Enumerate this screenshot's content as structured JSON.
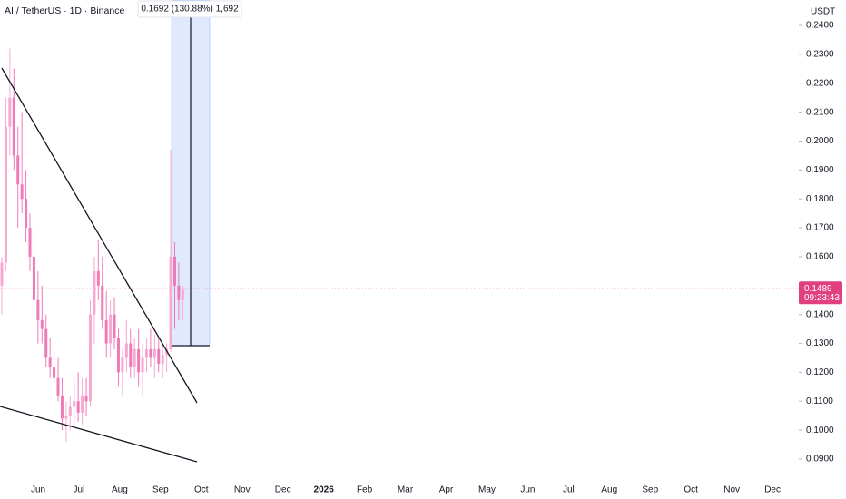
{
  "chart_data": {
    "type": "candlestick",
    "title": "AI / TetherUS · 1D · Binance",
    "y_unit": "USDT",
    "measure_label": "0.1692 (130.88%) 1,692",
    "last_price": 0.1489,
    "countdown": "09:23:43",
    "up_color": "#f8a8d0",
    "down_color": "#f07ab8",
    "price_line_color": "#e0407f",
    "categories": [
      "Jun",
      "Jul",
      "Aug",
      "Sep",
      "Oct",
      "Nov",
      "Dec",
      "2026",
      "Feb",
      "Mar",
      "Apr",
      "May",
      "Jun",
      "Jul",
      "Aug",
      "Sep",
      "Oct",
      "Nov",
      "Dec"
    ],
    "open": [
      0.15,
      0.158,
      0.205,
      0.215,
      0.195,
      0.185,
      0.18,
      0.17,
      0.16,
      0.145,
      0.138,
      0.135,
      0.125,
      0.122,
      0.118,
      0.112,
      0.104,
      0.105,
      0.108,
      0.11,
      0.106,
      0.112,
      0.11,
      0.14,
      0.155,
      0.15,
      0.138,
      0.13,
      0.14,
      0.132,
      0.12,
      0.125,
      0.13,
      0.122,
      0.128,
      0.12,
      0.125,
      0.128,
      0.125,
      0.128,
      0.123,
      0.126,
      0.128,
      0.16,
      0.15,
      0.145
    ],
    "high": [
      0.16,
      0.215,
      0.232,
      0.225,
      0.205,
      0.21,
      0.19,
      0.175,
      0.17,
      0.155,
      0.15,
      0.14,
      0.132,
      0.128,
      0.125,
      0.118,
      0.11,
      0.112,
      0.118,
      0.12,
      0.118,
      0.118,
      0.145,
      0.16,
      0.166,
      0.16,
      0.148,
      0.145,
      0.146,
      0.135,
      0.128,
      0.138,
      0.135,
      0.132,
      0.135,
      0.13,
      0.132,
      0.135,
      0.133,
      0.132,
      0.13,
      0.13,
      0.197,
      0.165,
      0.158,
      0.15
    ],
    "low": [
      0.14,
      0.155,
      0.195,
      0.19,
      0.17,
      0.175,
      0.165,
      0.155,
      0.14,
      0.13,
      0.13,
      0.122,
      0.118,
      0.115,
      0.11,
      0.1,
      0.096,
      0.1,
      0.102,
      0.103,
      0.102,
      0.105,
      0.108,
      0.13,
      0.145,
      0.135,
      0.125,
      0.125,
      0.128,
      0.115,
      0.112,
      0.12,
      0.118,
      0.118,
      0.115,
      0.112,
      0.12,
      0.122,
      0.118,
      0.12,
      0.118,
      0.12,
      0.127,
      0.135,
      0.138,
      0.138
    ],
    "close": [
      0.158,
      0.205,
      0.215,
      0.195,
      0.185,
      0.18,
      0.17,
      0.16,
      0.145,
      0.138,
      0.135,
      0.125,
      0.122,
      0.118,
      0.112,
      0.104,
      0.105,
      0.108,
      0.11,
      0.106,
      0.112,
      0.11,
      0.14,
      0.155,
      0.15,
      0.138,
      0.13,
      0.14,
      0.132,
      0.12,
      0.125,
      0.13,
      0.122,
      0.128,
      0.12,
      0.125,
      0.128,
      0.125,
      0.128,
      0.123,
      0.126,
      0.128,
      0.16,
      0.15,
      0.145,
      0.1489
    ],
    "ylim": [
      0.0856,
      0.2488
    ],
    "yticks": [
      {
        "value": 0.24,
        "label": "0.2400"
      },
      {
        "value": 0.23,
        "label": "0.2300"
      },
      {
        "value": 0.22,
        "label": "0.2200"
      },
      {
        "value": 0.21,
        "label": "0.2100"
      },
      {
        "value": 0.2,
        "label": "0.2000"
      },
      {
        "value": 0.19,
        "label": "0.1900"
      },
      {
        "value": 0.18,
        "label": "0.1800"
      },
      {
        "value": 0.17,
        "label": "0.1700"
      },
      {
        "value": 0.16,
        "label": "0.1600"
      },
      {
        "value": 0.14,
        "label": "0.1400"
      },
      {
        "value": 0.13,
        "label": "0.1300"
      },
      {
        "value": 0.12,
        "label": "0.1200"
      },
      {
        "value": 0.11,
        "label": "0.1100"
      },
      {
        "value": 0.1,
        "label": "0.1000"
      },
      {
        "value": 0.09,
        "label": "0.0900"
      }
    ]
  }
}
